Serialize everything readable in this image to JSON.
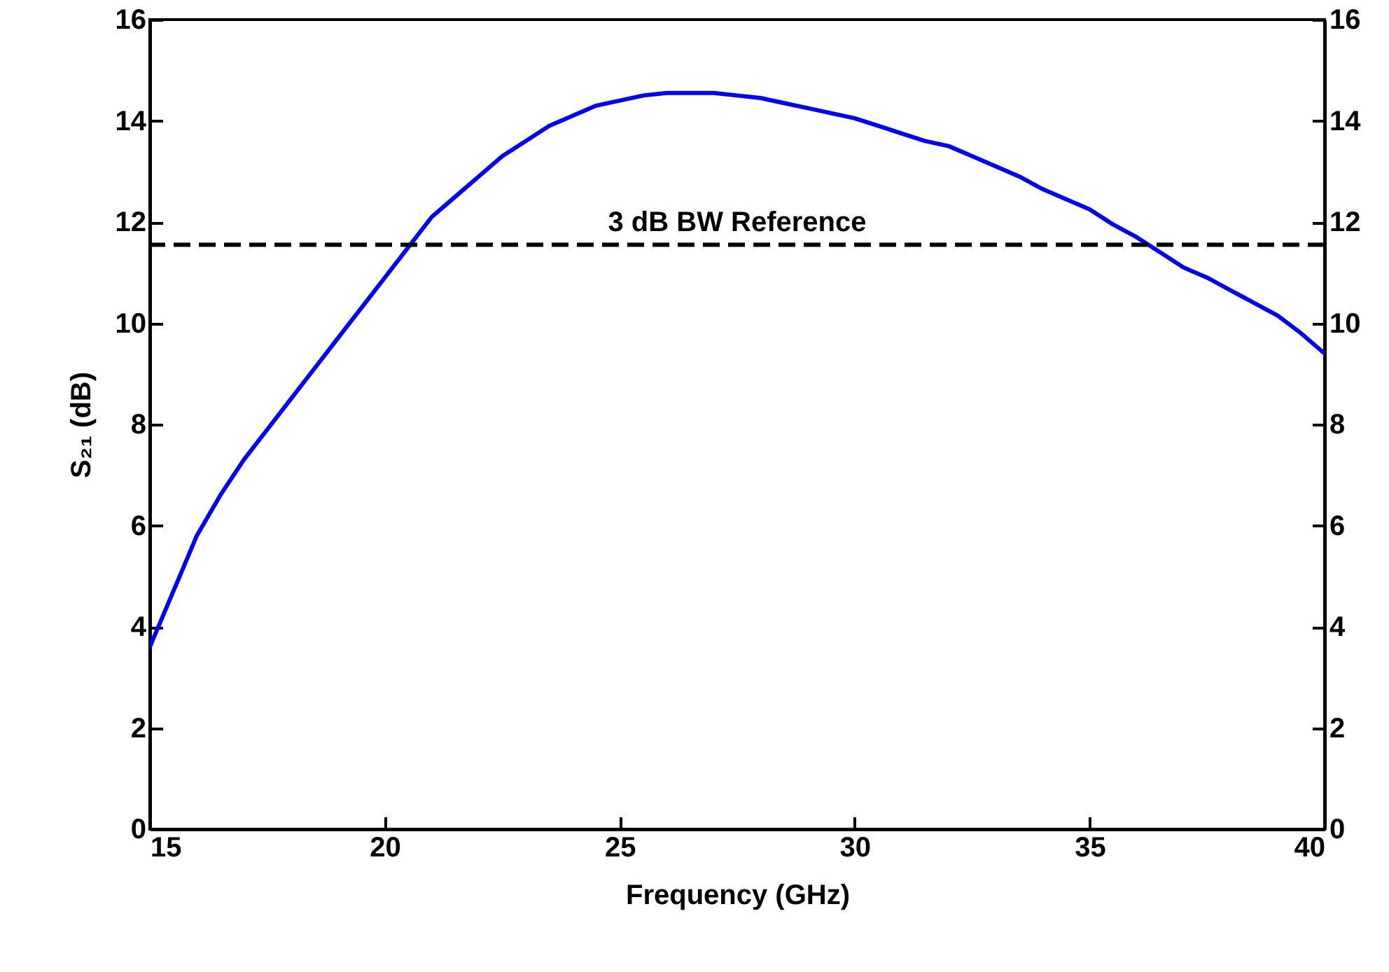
{
  "chart_data": {
    "type": "line",
    "xlabel": "Frequency (GHz)",
    "ylabel": "S₂₁ (dB)",
    "x": [
      15,
      15.5,
      16,
      16.5,
      17,
      17.5,
      18,
      18.5,
      19,
      19.5,
      20,
      20.5,
      21,
      21.5,
      22,
      22.5,
      23,
      23.5,
      24,
      24.5,
      25,
      25.5,
      26,
      26.5,
      27,
      27.5,
      28,
      28.5,
      29,
      29.5,
      30,
      30.5,
      31,
      31.5,
      32,
      32.5,
      33,
      33.5,
      34,
      34.5,
      35,
      35.5,
      36,
      36.5,
      37,
      37.5,
      38,
      38.5,
      39,
      39.5,
      40
    ],
    "series": [
      {
        "color": "#0000ff",
        "values": [
          3.6,
          4.7,
          5.8,
          6.6,
          7.3,
          7.9,
          8.5,
          9.1,
          9.7,
          10.3,
          10.9,
          11.5,
          12.1,
          12.5,
          12.9,
          13.3,
          13.6,
          13.9,
          14.1,
          14.3,
          14.4,
          14.5,
          14.55,
          14.55,
          14.55,
          14.5,
          14.45,
          14.35,
          14.25,
          14.15,
          14.05,
          13.9,
          13.75,
          13.6,
          13.5,
          13.3,
          13.1,
          12.9,
          12.65,
          12.45,
          12.25,
          11.95,
          11.7,
          11.4,
          11.1,
          10.9,
          10.65,
          10.4,
          10.15,
          9.8,
          9.4
        ]
      }
    ],
    "xlim": [
      15,
      40
    ],
    "xticks": [
      15,
      20,
      25,
      30,
      35,
      40
    ],
    "ylim": [
      0,
      16
    ],
    "yticks": [
      0,
      2,
      4,
      6,
      8,
      10,
      12,
      14,
      16
    ],
    "y2lim": [
      0,
      16
    ],
    "y2ticks": [
      0,
      2,
      4,
      6,
      8,
      10,
      12,
      14,
      16
    ],
    "ref_lines": [
      {
        "axis": "y",
        "value": 11.55,
        "label": "3 dB BW Reference",
        "color": "#000000",
        "line_style": "dashed"
      }
    ],
    "grid": false,
    "marker": "none",
    "line_style": "solid"
  }
}
